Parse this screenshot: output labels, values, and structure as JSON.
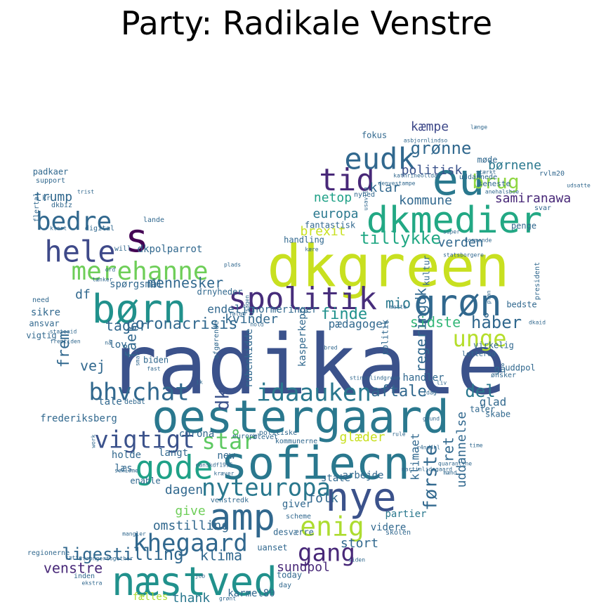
{
  "chart_data": {
    "type": "wordcloud",
    "title": "Party: Radikale Venstre",
    "palette": "viridis",
    "background": "#ffffff",
    "shape": "bird",
    "words": [
      {
        "text": "radikale",
        "color": "#3b528b"
      },
      {
        "text": "dkgreen",
        "color": "#c8e020"
      },
      {
        "text": "oestergaard",
        "color": "#2a788e"
      },
      {
        "text": "sofiecn",
        "color": "#2a788e"
      },
      {
        "text": "dkmedier",
        "color": "#22a884"
      },
      {
        "text": "eu",
        "color": "#2a788e"
      },
      {
        "text": "børn",
        "color": "#21918c"
      },
      {
        "text": "næstved",
        "color": "#21918c"
      },
      {
        "text": "nye",
        "color": "#3b528b"
      },
      {
        "text": "amp",
        "color": "#31688e"
      },
      {
        "text": "spolitik",
        "color": "#472d7b"
      },
      {
        "text": "grøn",
        "color": "#31688e"
      },
      {
        "text": "s",
        "color": "#440154"
      },
      {
        "text": "tid",
        "color": "#482878"
      },
      {
        "text": "eudk",
        "color": "#31688e"
      },
      {
        "text": "hele",
        "color": "#3e4989"
      },
      {
        "text": "gode",
        "color": "#1fa187"
      },
      {
        "text": "bedre",
        "color": "#31688e"
      },
      {
        "text": "merehanne",
        "color": "#6ece58"
      },
      {
        "text": "idaauken",
        "color": "#2a788e"
      },
      {
        "text": "nyteuropa",
        "color": "#2a788e"
      },
      {
        "text": "khegaard",
        "color": "#31688e"
      },
      {
        "text": "enig",
        "color": "#addc30"
      },
      {
        "text": "gang",
        "color": "#482878"
      },
      {
        "text": "bhvchat",
        "color": "#31688e"
      },
      {
        "text": "vigtigt",
        "color": "#3b528b"
      },
      {
        "text": "unge",
        "color": "#b5de2b"
      },
      {
        "text": "står",
        "color": "#5ec962"
      },
      {
        "text": "brug",
        "color": "#90d743"
      },
      {
        "text": "grønne",
        "color": "#31688e"
      },
      {
        "text": "kæmpe",
        "color": "#3e4989"
      },
      {
        "text": "tillykke",
        "color": "#22a884"
      },
      {
        "text": "finde",
        "color": "#21918c"
      },
      {
        "text": "mio",
        "color": "#2a788e"
      },
      {
        "text": "håber",
        "color": "#31688e"
      },
      {
        "text": "dk",
        "color": "#3b528b"
      },
      {
        "text": "ligestilling",
        "color": "#31688e"
      },
      {
        "text": "trump",
        "color": "#31688e"
      },
      {
        "text": "coronacrisis",
        "color": "#31688e"
      },
      {
        "text": "sidste",
        "color": "#35b779"
      },
      {
        "text": "første",
        "color": "#31688e"
      },
      {
        "text": "regeringdk",
        "color": "#31688e"
      },
      {
        "text": "del",
        "color": "#2a788e"
      },
      {
        "text": "aftale",
        "color": "#31688e"
      },
      {
        "text": "netop",
        "color": "#1fa187"
      },
      {
        "text": "klar",
        "color": "#31688e"
      },
      {
        "text": "europa",
        "color": "#2a788e"
      },
      {
        "text": "brexit",
        "color": "#c8e020"
      },
      {
        "text": "kommune",
        "color": "#31688e"
      },
      {
        "text": "politisk",
        "color": "#3b528b"
      },
      {
        "text": "børnene",
        "color": "#2a788e"
      },
      {
        "text": "samiranawa",
        "color": "#482878"
      },
      {
        "text": "verden",
        "color": "#31688e"
      },
      {
        "text": "mennesker",
        "color": "#31688e"
      },
      {
        "text": "kvinder",
        "color": "#31688e"
      },
      {
        "text": "tager",
        "color": "#31688e"
      },
      {
        "text": "frem",
        "color": "#31688e"
      },
      {
        "text": "fået",
        "color": "#31688e"
      },
      {
        "text": "vej",
        "color": "#31688e"
      },
      {
        "text": "df",
        "color": "#31688e"
      },
      {
        "text": "venstre",
        "color": "#482878"
      },
      {
        "text": "klima",
        "color": "#31688e"
      },
      {
        "text": "stort",
        "color": "#31688e"
      },
      {
        "text": "sundpol",
        "color": "#482878"
      },
      {
        "text": "thank",
        "color": "#2a788e"
      },
      {
        "text": "give",
        "color": "#6ece58"
      },
      {
        "text": "omstilling",
        "color": "#31688e"
      },
      {
        "text": "dagen",
        "color": "#31688e"
      },
      {
        "text": "folk",
        "color": "#31688e"
      },
      {
        "text": "uddannelse",
        "color": "#31688e"
      },
      {
        "text": "ret",
        "color": "#31688e"
      },
      {
        "text": "glæder",
        "color": "#c8e020"
      },
      {
        "text": "klimaet",
        "color": "#31688e"
      },
      {
        "text": "endelig",
        "color": "#31688e"
      },
      {
        "text": "pædagoger",
        "color": "#31688e"
      },
      {
        "text": "kasperkepp",
        "color": "#31688e"
      },
      {
        "text": "rubenkidde",
        "color": "#31688e"
      },
      {
        "text": "normeringer",
        "color": "#31688e"
      },
      {
        "text": "karmel80",
        "color": "#31688e"
      },
      {
        "text": "fælles",
        "color": "#addc30"
      },
      {
        "text": "videre",
        "color": "#31688e"
      },
      {
        "text": "partier",
        "color": "#2a788e"
      },
      {
        "text": "giver",
        "color": "#31688e"
      },
      {
        "text": "arbejde",
        "color": "#31688e"
      },
      {
        "text": "state",
        "color": "#31688e"
      },
      {
        "text": "glad",
        "color": "#31688e"
      },
      {
        "text": "handler",
        "color": "#31688e"
      },
      {
        "text": "gå",
        "color": "#31688e"
      },
      {
        "text": "uddpol",
        "color": "#31688e"
      },
      {
        "text": "lov",
        "color": "#31688e"
      },
      {
        "text": "læs",
        "color": "#31688e"
      },
      {
        "text": "holde",
        "color": "#31688e"
      },
      {
        "text": "langt",
        "color": "#31688e"
      },
      {
        "text": "new",
        "color": "#31688e"
      },
      {
        "text": "corona",
        "color": "#31688e"
      },
      {
        "text": "tale",
        "color": "#31688e"
      },
      {
        "text": "frederiksberg",
        "color": "#31688e"
      },
      {
        "text": "biden",
        "color": "#31688e"
      },
      {
        "text": "sikre",
        "color": "#31688e"
      },
      {
        "text": "ansvar",
        "color": "#31688e"
      },
      {
        "text": "vigtig",
        "color": "#31688e"
      },
      {
        "text": "padkaer",
        "color": "#31688e"
      },
      {
        "text": "support",
        "color": "#31688e"
      },
      {
        "text": "dkbiz",
        "color": "#31688e"
      },
      {
        "text": "penge",
        "color": "#31688e"
      },
      {
        "text": "handling",
        "color": "#31688e"
      },
      {
        "text": "fantastisk",
        "color": "#31688e"
      },
      {
        "text": "kultur",
        "color": "#31688e"
      },
      {
        "text": "bedste",
        "color": "#31688e"
      },
      {
        "text": "dkpolparrot",
        "color": "#31688e"
      },
      {
        "text": "spørgsmål",
        "color": "#31688e"
      },
      {
        "text": "drnyheder",
        "color": "#31688e"
      },
      {
        "text": "fokus",
        "color": "#31688e"
      },
      {
        "text": "møde",
        "color": "#31688e"
      },
      {
        "text": "seneste",
        "color": "#31688e"
      },
      {
        "text": "rvlm20",
        "color": "#31688e"
      },
      {
        "text": "regionerne",
        "color": "#31688e"
      },
      {
        "text": "inden",
        "color": "#31688e"
      },
      {
        "text": "ekstra",
        "color": "#31688e"
      },
      {
        "text": "today",
        "color": "#31688e"
      },
      {
        "text": "day",
        "color": "#31688e"
      },
      {
        "text": "skabe",
        "color": "#31688e"
      },
      {
        "text": "uanset",
        "color": "#31688e"
      },
      {
        "text": "desværre",
        "color": "#31688e"
      },
      {
        "text": "skolen",
        "color": "#31688e"
      },
      {
        "text": "enable",
        "color": "#31688e"
      },
      {
        "text": "debat",
        "color": "#31688e"
      },
      {
        "text": "time",
        "color": "#31688e"
      },
      {
        "text": "kommunerne",
        "color": "#31688e"
      },
      {
        "text": "blevet",
        "color": "#31688e"
      },
      {
        "text": "president",
        "color": "#31688e"
      },
      {
        "text": "politik",
        "color": "#31688e"
      },
      {
        "text": "politiske",
        "color": "#31688e"
      },
      {
        "text": "lotterod",
        "color": "#31688e"
      },
      {
        "text": "virkelig",
        "color": "#31688e"
      },
      {
        "text": "taler",
        "color": "#31688e"
      },
      {
        "text": "ønsker",
        "color": "#31688e"
      },
      {
        "text": "svar",
        "color": "#31688e"
      },
      {
        "text": "udsatte",
        "color": "#31688e"
      },
      {
        "text": "uddannede",
        "color": "#31688e"
      },
      {
        "text": "stærkt",
        "color": "#31688e"
      },
      {
        "text": "nyhed",
        "color": "#31688e"
      },
      {
        "text": "lande",
        "color": "#31688e"
      },
      {
        "text": "digital",
        "color": "#31688e"
      },
      {
        "text": "trist",
        "color": "#31688e"
      },
      {
        "text": "flertal",
        "color": "#31688e"
      },
      {
        "text": "kr",
        "color": "#31688e"
      },
      {
        "text": "klart",
        "color": "#31688e"
      },
      {
        "text": "will",
        "color": "#31688e"
      },
      {
        "text": "ord",
        "color": "#31688e"
      },
      {
        "text": "tænker",
        "color": "#31688e"
      },
      {
        "text": "need",
        "color": "#31688e"
      },
      {
        "text": "plads",
        "color": "#31688e"
      },
      {
        "text": "følge",
        "color": "#31688e"
      },
      {
        "text": "hold",
        "color": "#31688e"
      },
      {
        "text": "sagen",
        "color": "#31688e"
      },
      {
        "text": "stateaid",
        "color": "#31688e"
      },
      {
        "text": "fremtiden",
        "color": "#31688e"
      },
      {
        "text": "nå",
        "color": "#31688e"
      },
      {
        "text": "fast",
        "color": "#31688e"
      },
      {
        "text": "afgørende",
        "color": "#31688e"
      },
      {
        "text": "smart",
        "color": "#31688e"
      },
      {
        "text": "ik",
        "color": "#31688e"
      },
      {
        "text": "bred",
        "color": "#31688e"
      },
      {
        "text": "mette",
        "color": "#31688e"
      },
      {
        "text": "plan",
        "color": "#31688e"
      },
      {
        "text": "dkaid",
        "color": "#31688e"
      },
      {
        "text": "idag",
        "color": "#31688e"
      },
      {
        "text": "liv",
        "color": "#31688e"
      },
      {
        "text": "stinuslindgreen",
        "color": "#31688e"
      },
      {
        "text": "europe",
        "color": "#31688e"
      },
      {
        "text": "danskdf1995",
        "color": "#31688e"
      },
      {
        "text": "kræver",
        "color": "#31688e"
      },
      {
        "text": "rule",
        "color": "#31688e"
      },
      {
        "text": "grund",
        "color": "#31688e"
      },
      {
        "text": "r4nd4hl",
        "color": "#31688e"
      },
      {
        "text": "martinlidegaard",
        "color": "#31688e"
      },
      {
        "text": "quarantine",
        "color": "#31688e"
      },
      {
        "text": "mænd",
        "color": "#31688e"
      },
      {
        "text": "work",
        "color": "#31688e"
      },
      {
        "text": "sexisme",
        "color": "#31688e"
      },
      {
        "text": "venstredk",
        "color": "#31688e"
      },
      {
        "text": "scheme",
        "color": "#31688e"
      },
      {
        "text": "mangler",
        "color": "#31688e"
      },
      {
        "text": "sætte",
        "color": "#31688e"
      },
      {
        "text": "strongertogether",
        "color": "#31688e"
      },
      {
        "text": "job",
        "color": "#31688e"
      },
      {
        "text": "grønt",
        "color": "#31688e"
      },
      {
        "text": "siden",
        "color": "#31688e"
      },
      {
        "text": "super",
        "color": "#31688e"
      },
      {
        "text": "kommende",
        "color": "#31688e"
      },
      {
        "text": "kære",
        "color": "#31688e"
      },
      {
        "text": "statsborgere",
        "color": "#31688e"
      },
      {
        "text": "anehalsboe",
        "color": "#31688e"
      },
      {
        "text": "kathrineolldag",
        "color": "#31688e"
      },
      {
        "text": "denvestampe",
        "color": "#31688e"
      },
      {
        "text": "usavlig",
        "color": "#31688e"
      },
      {
        "text": "asbjornlindso",
        "color": "#31688e"
      },
      {
        "text": "længe",
        "color": "#31688e"
      }
    ]
  }
}
